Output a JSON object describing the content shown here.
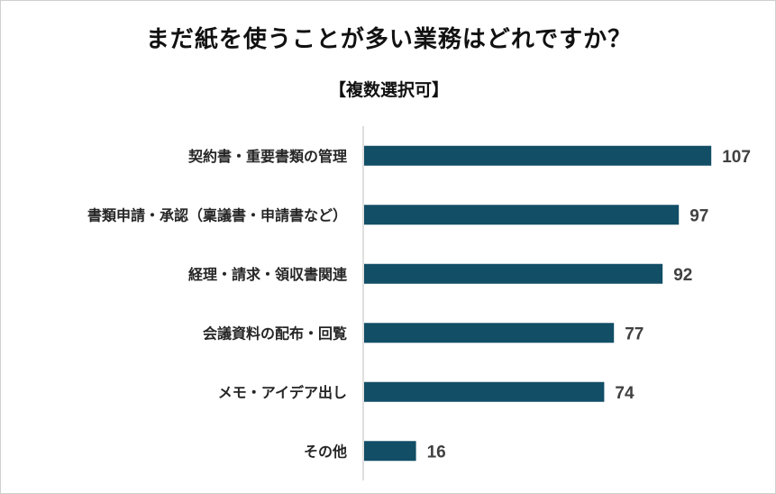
{
  "chart_data": {
    "type": "bar",
    "orientation": "horizontal",
    "title": "まだ紙を使うことが多い業務はどれですか？",
    "subtitle": "【複数選択可】",
    "categories": [
      "契約書・重要書類の管理",
      "書類申請・承認（稟議書・申請書など）",
      "経理・請求・領収書関連",
      "会議資料の配布・回覧",
      "メモ・アイデア出し",
      "その他"
    ],
    "values": [
      107,
      97,
      92,
      77,
      74,
      16
    ],
    "bar_color": "#124e66",
    "xlim": [
      0,
      110
    ],
    "grid": false,
    "legend": "none"
  }
}
